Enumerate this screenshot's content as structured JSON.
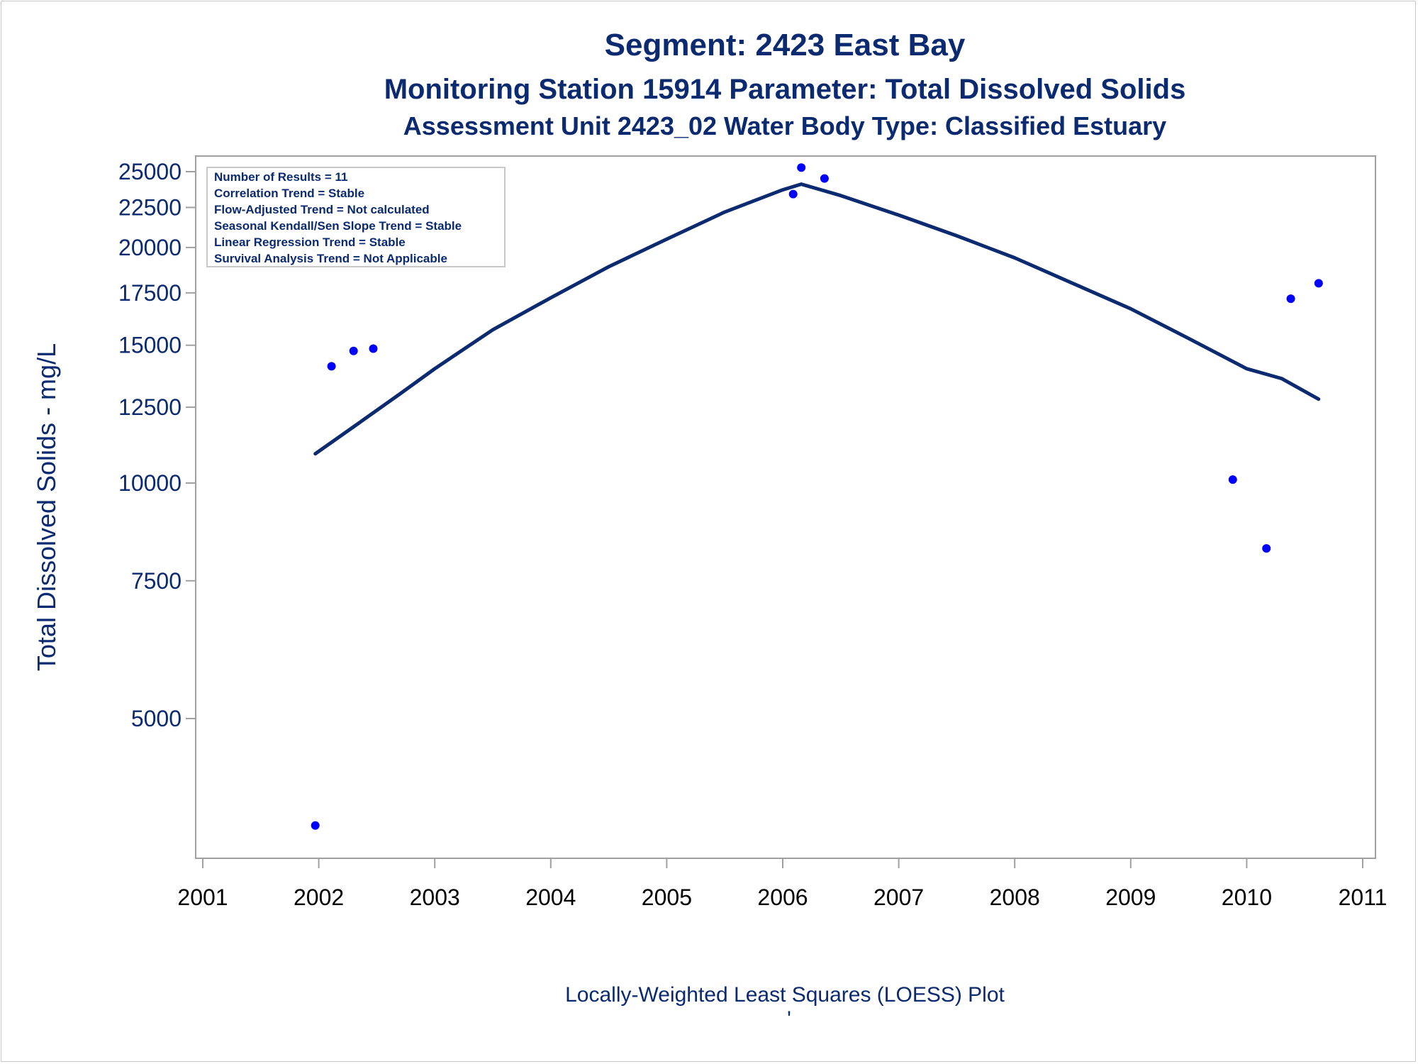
{
  "chart_data": {
    "type": "scatter",
    "title": "Segment: 2423  East Bay",
    "subtitle_1": "Monitoring Station 15914 Parameter: Total Dissolved Solids",
    "subtitle_2": "Assessment Unit 2423_02   Water Body Type: Classified Estuary",
    "ylabel": "Total Dissolved Solids - mg/L",
    "xlabel": "",
    "footnote": "Locally-Weighted Least Squares (LOESS) Plot",
    "footnote_mark": "'",
    "y_scale": "log",
    "xlim": [
      2001,
      2011
    ],
    "ylim": [
      3600,
      26000
    ],
    "x_ticks": [
      2001,
      2002,
      2003,
      2004,
      2005,
      2006,
      2007,
      2008,
      2009,
      2010,
      2011
    ],
    "y_ticks": [
      5000,
      7500,
      10000,
      12500,
      15000,
      17500,
      20000,
      22500,
      25000
    ],
    "grid": false,
    "legend_position": "top-left",
    "stats_box": [
      "Number of Results = 11",
      "Correlation Trend = Stable",
      "Flow-Adjusted Trend = Not calculated",
      "Seasonal Kendall/Sen Slope Trend = Stable",
      "Linear Regression Trend = Stable",
      "Survival Analysis Trend = Not Applicable"
    ],
    "series": [
      {
        "kind": "points",
        "color": "#0000ff",
        "x": [
          2001.97,
          2002.11,
          2002.3,
          2002.47,
          2006.09,
          2006.16,
          2006.36,
          2009.88,
          2010.17,
          2010.38,
          2010.62
        ],
        "y": [
          3650,
          14100,
          14750,
          14850,
          23400,
          25300,
          24500,
          10100,
          8250,
          17200,
          18000
        ]
      },
      {
        "kind": "loess-line",
        "color": "#0b2a6f",
        "x": [
          2001.97,
          2002.3,
          2002.7,
          2003.0,
          2003.5,
          2004.0,
          2004.5,
          2005.0,
          2005.5,
          2006.0,
          2006.16,
          2006.5,
          2007.0,
          2007.5,
          2008.0,
          2008.5,
          2009.0,
          2009.5,
          2010.0,
          2010.3,
          2010.62
        ],
        "y": [
          10900,
          11800,
          13000,
          14000,
          15700,
          17250,
          18900,
          20500,
          22200,
          23700,
          24100,
          23300,
          22000,
          20700,
          19400,
          18000,
          16700,
          15300,
          14000,
          13600,
          12800
        ]
      }
    ]
  },
  "colors": {
    "title": "#0b2a6f",
    "axis_frame": "#a0a0a0",
    "points": "#0000ff",
    "line": "#0b2a6f"
  }
}
